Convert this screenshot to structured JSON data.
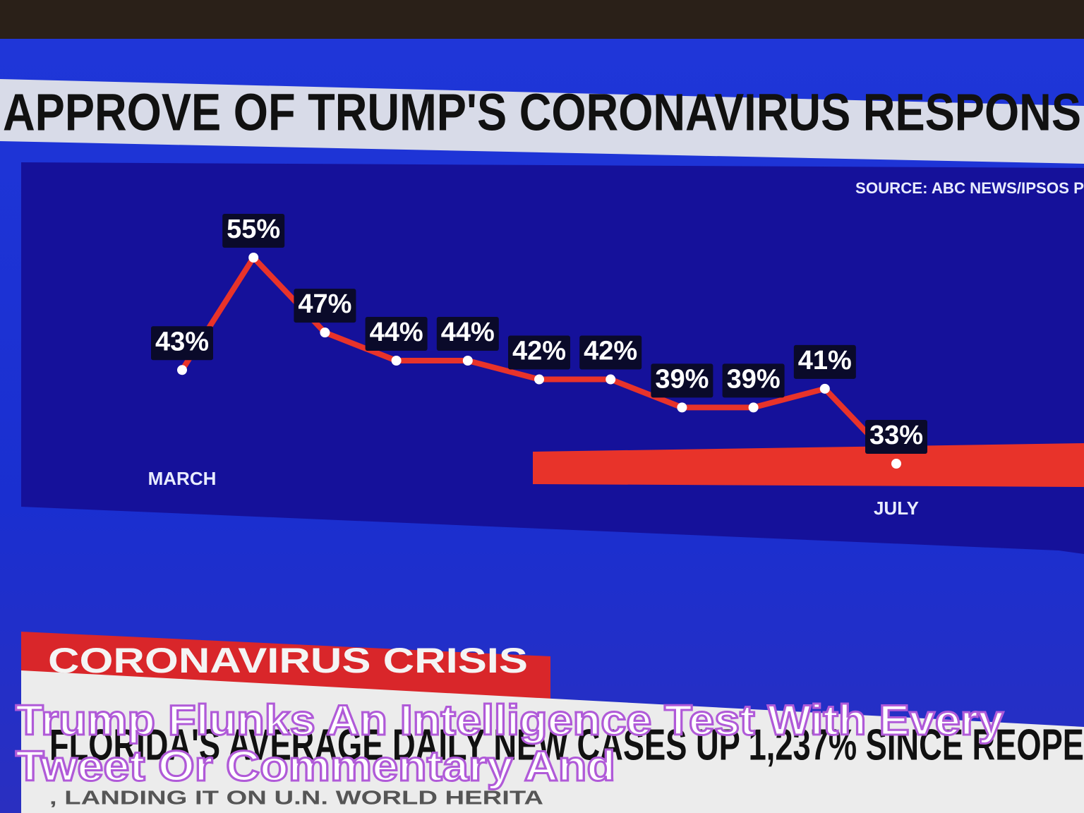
{
  "chart_data": {
    "type": "line",
    "title": "APPROVE OF TRUMP'S CORONAVIRUS RESPONS",
    "source": "SOURCE: ABC NEWS/IPSOS P",
    "categories": [
      "MARCH",
      null,
      null,
      null,
      null,
      null,
      null,
      null,
      null,
      null,
      "JULY"
    ],
    "series": [
      {
        "color": "#e8332a",
        "values": [
          43,
          55,
          47,
          44,
          44,
          42,
          42,
          39,
          39,
          41,
          33
        ],
        "value_labels": [
          "43%",
          "55%",
          "47%",
          "44%",
          "44%",
          "42%",
          "42%",
          "39%",
          "39%",
          "41%",
          "33%"
        ]
      }
    ]
  },
  "banner": {
    "label": "CORONAVIRUS CRISIS",
    "headline": "FLORIDA'S AVERAGE DAILY NEW CASES UP 1,237% SINCE REOPE",
    "ticker": ", LANDING IT ON U.N. WORLD HERITA"
  },
  "caption": [
    "Trump Flunks An Intelligence Test With Every",
    "Tweet Or Commentary And"
  ]
}
